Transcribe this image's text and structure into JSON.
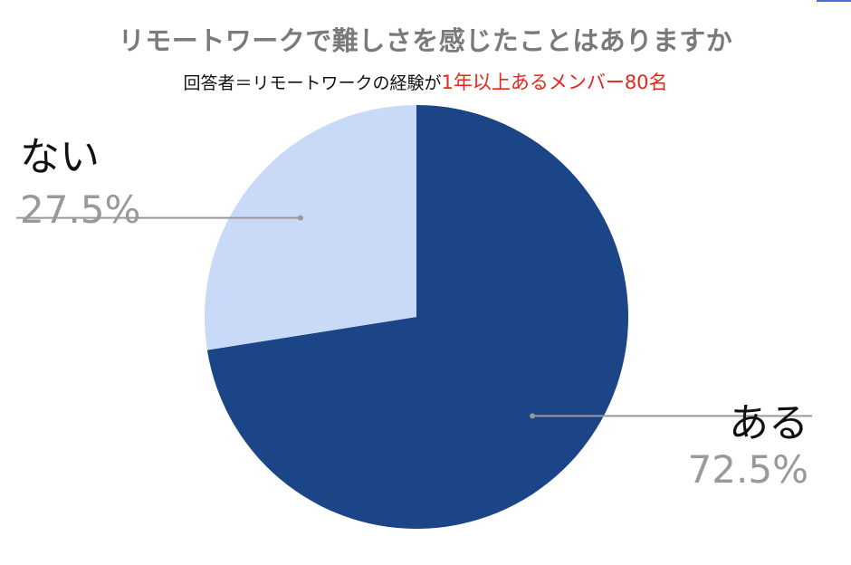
{
  "chart_data": {
    "type": "pie",
    "title": "リモートワークで難しさを感じたことはありますか",
    "subtitle_prefix": "回答者＝リモートワークの経験が",
    "subtitle_highlight": "1年以上あるメンバー80名",
    "slices": [
      {
        "label": "ある",
        "value": 72.5,
        "value_label": "72.5%",
        "color": "#1c4587"
      },
      {
        "label": "ない",
        "value": 27.5,
        "value_label": "27.5%",
        "color": "#c9daf8"
      }
    ],
    "start_angle_deg": 0,
    "direction": "clockwise",
    "leader_line_color": "#999999"
  }
}
